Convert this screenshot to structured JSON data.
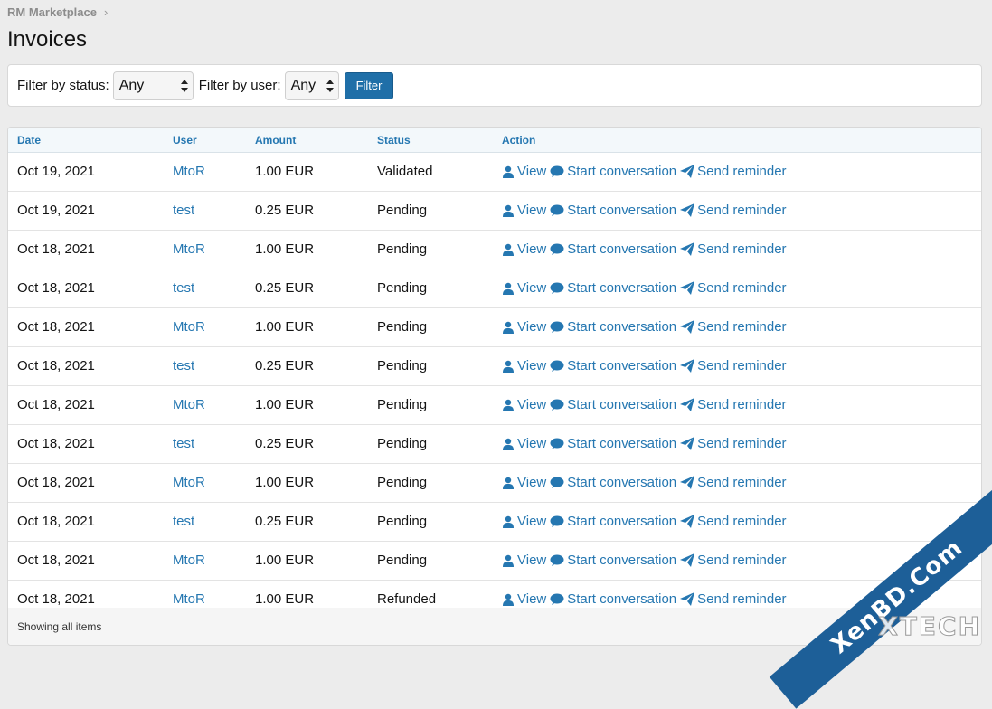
{
  "breadcrumb": {
    "root": "RM Marketplace",
    "separator": "›"
  },
  "page_title": "Invoices",
  "filters": {
    "status_label": "Filter by status:",
    "status_value": "Any",
    "user_label": "Filter by user:",
    "user_value": "Any",
    "button": "Filter"
  },
  "table": {
    "headers": {
      "date": "Date",
      "user": "User",
      "amount": "Amount",
      "status": "Status",
      "action": "Action"
    },
    "rows": [
      {
        "date": "Oct 19, 2021",
        "user": "MtoR",
        "amount": "1.00 EUR",
        "status": "Validated"
      },
      {
        "date": "Oct 19, 2021",
        "user": "test",
        "amount": "0.25 EUR",
        "status": "Pending"
      },
      {
        "date": "Oct 18, 2021",
        "user": "MtoR",
        "amount": "1.00 EUR",
        "status": "Pending"
      },
      {
        "date": "Oct 18, 2021",
        "user": "test",
        "amount": "0.25 EUR",
        "status": "Pending"
      },
      {
        "date": "Oct 18, 2021",
        "user": "MtoR",
        "amount": "1.00 EUR",
        "status": "Pending"
      },
      {
        "date": "Oct 18, 2021",
        "user": "test",
        "amount": "0.25 EUR",
        "status": "Pending"
      },
      {
        "date": "Oct 18, 2021",
        "user": "MtoR",
        "amount": "1.00 EUR",
        "status": "Pending"
      },
      {
        "date": "Oct 18, 2021",
        "user": "test",
        "amount": "0.25 EUR",
        "status": "Pending"
      },
      {
        "date": "Oct 18, 2021",
        "user": "MtoR",
        "amount": "1.00 EUR",
        "status": "Pending"
      },
      {
        "date": "Oct 18, 2021",
        "user": "test",
        "amount": "0.25 EUR",
        "status": "Pending"
      },
      {
        "date": "Oct 18, 2021",
        "user": "MtoR",
        "amount": "1.00 EUR",
        "status": "Pending"
      },
      {
        "date": "Oct 18, 2021",
        "user": "MtoR",
        "amount": "1.00 EUR",
        "status": "Refunded"
      }
    ],
    "actions": {
      "view": "View",
      "conversation": "Start conversation",
      "reminder": "Send reminder"
    },
    "footer": "Showing all items"
  },
  "watermark": {
    "ribbon": "XenBD.Com",
    "text": "XTECH"
  },
  "colors": {
    "link": "#2577b1",
    "button": "#1f6fa8",
    "ribbon": "#1d5f98"
  }
}
